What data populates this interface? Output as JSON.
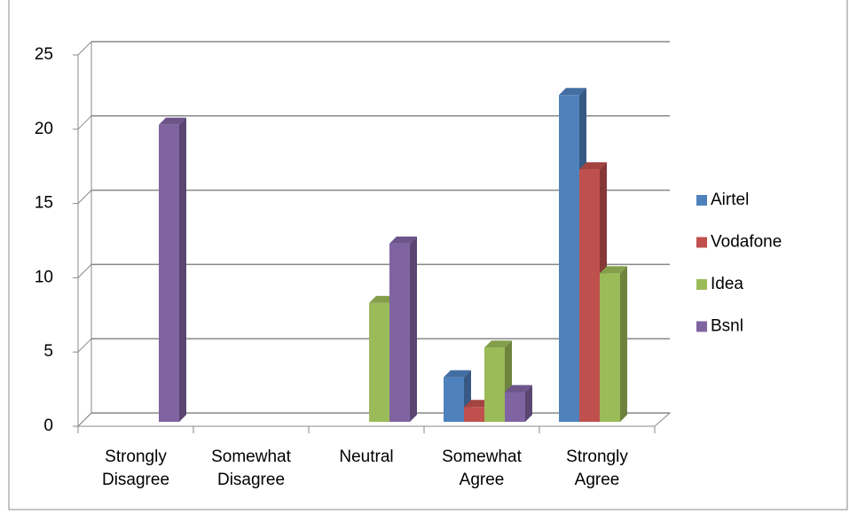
{
  "chart_data": {
    "type": "bar3d",
    "categories": [
      "Strongly Disagree",
      "Somewhat Disagree",
      "Neutral",
      "Somewhat Agree",
      "Strongly Agree"
    ],
    "series": [
      {
        "name": "Airtel",
        "color": "#4f81bd",
        "values": [
          0,
          0,
          0,
          3,
          22
        ]
      },
      {
        "name": "Vodafone",
        "color": "#c0504d",
        "values": [
          0,
          0,
          0,
          1,
          17
        ]
      },
      {
        "name": "Idea",
        "color": "#9bbb59",
        "values": [
          0,
          0,
          8,
          5,
          10
        ]
      },
      {
        "name": "Bsnl",
        "color": "#8064a2",
        "values": [
          20,
          0,
          12,
          2,
          0
        ]
      }
    ],
    "ylim": [
      0,
      25
    ],
    "yticks": [
      0,
      5,
      10,
      15,
      20,
      25
    ],
    "grid": true,
    "legend": "right"
  }
}
